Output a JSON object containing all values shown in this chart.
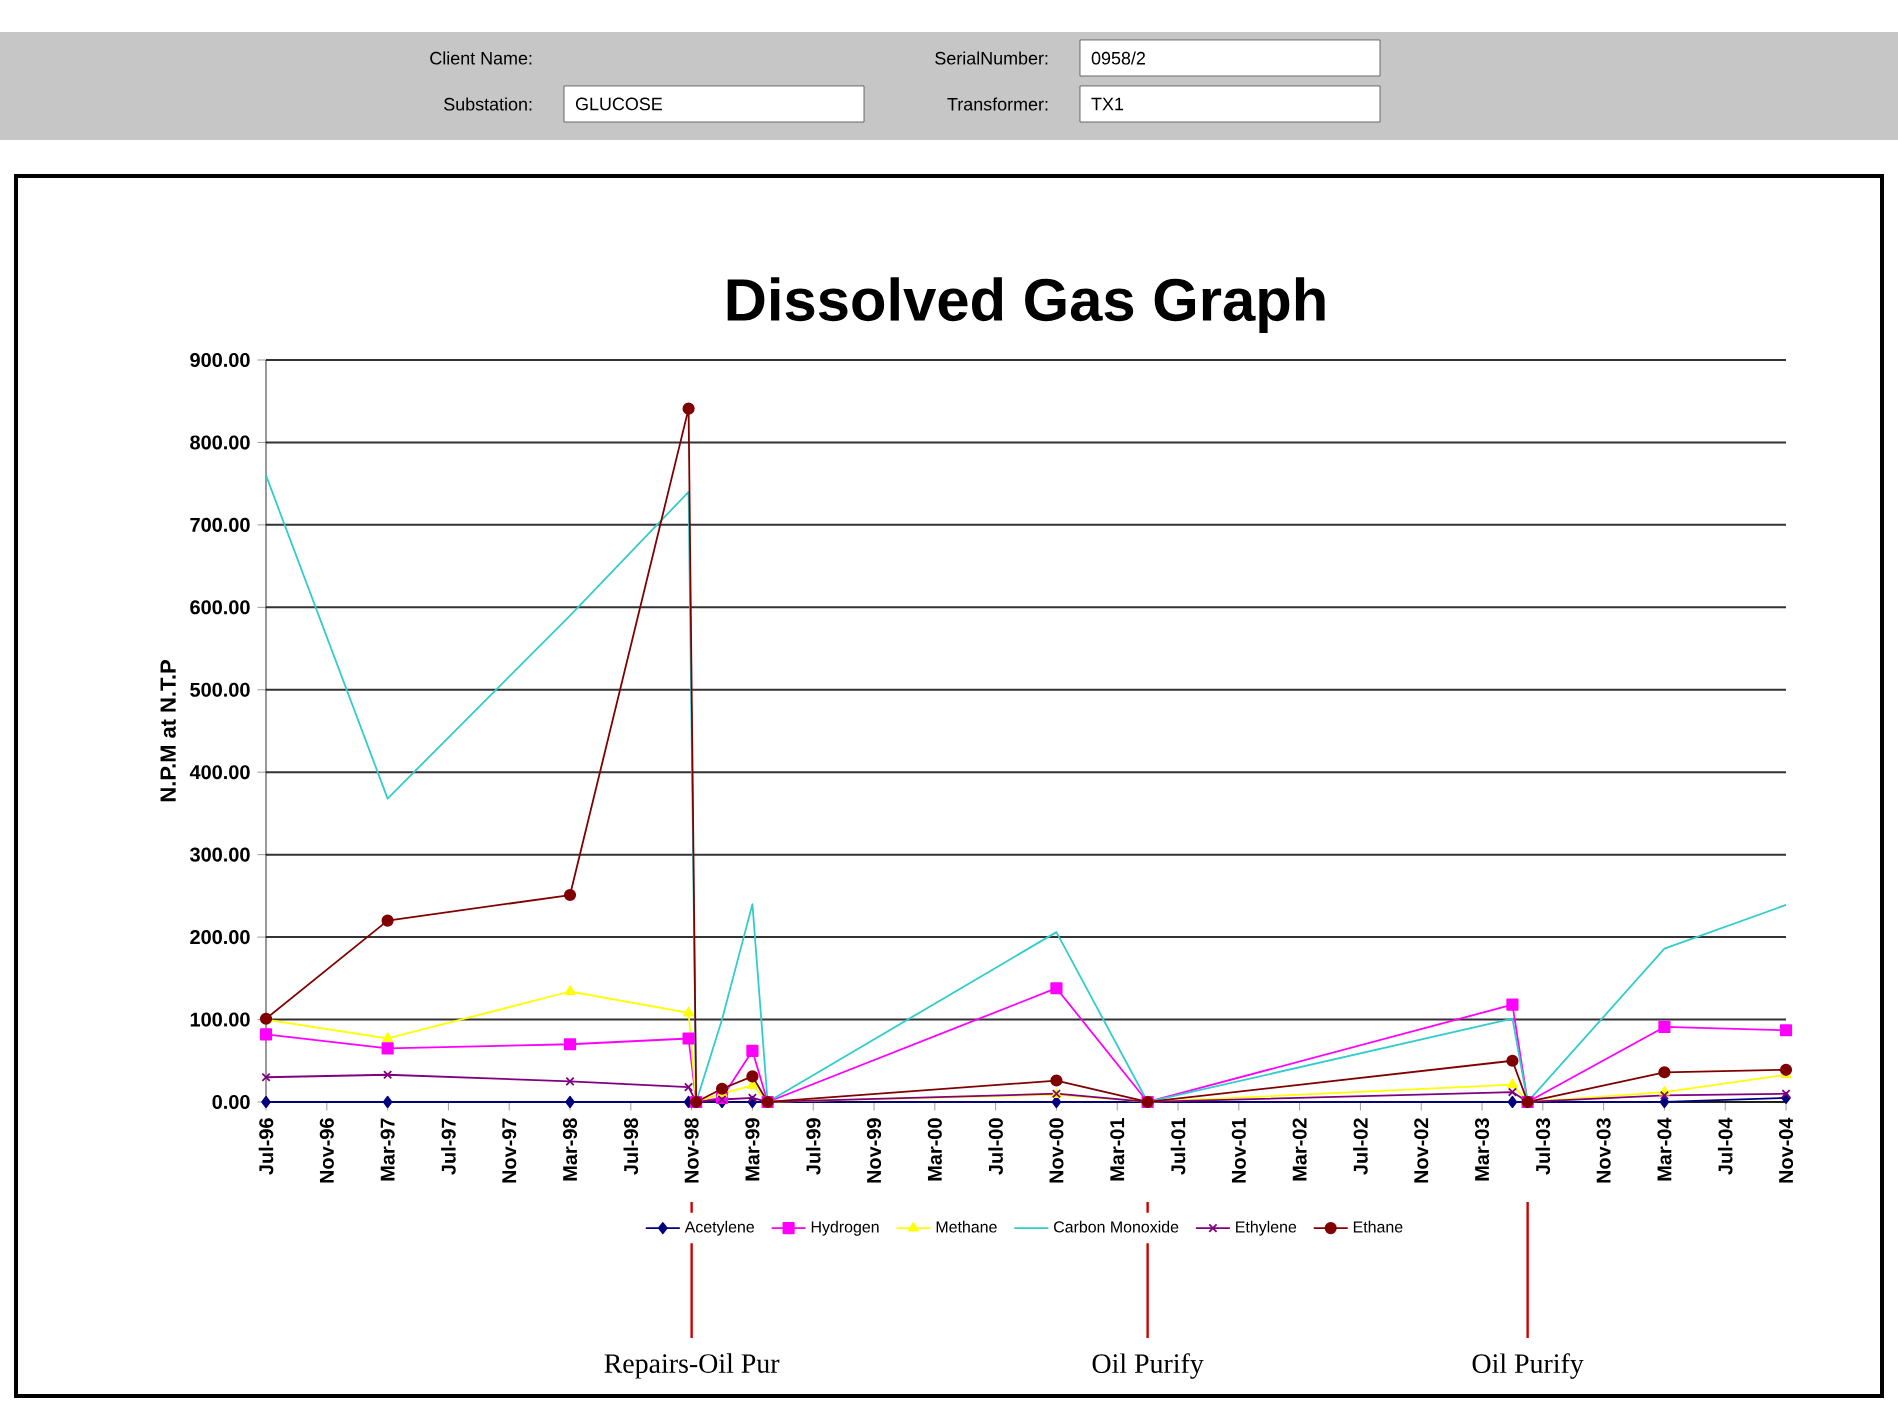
{
  "chart_data": {
    "type": "line",
    "title": "Dissolved Gas Graph",
    "ylabel": "N.P.M at N.T.P",
    "x": [
      "1996-07",
      "1997-03",
      "1998-03",
      "1998-10-25",
      "1998-11-10",
      "1999-01",
      "1999-03",
      "1999-04",
      "2000-11",
      "2001-05",
      "2003-05",
      "2003-06",
      "2004-03",
      "2004-11"
    ],
    "series": [
      {
        "name": "Acetylene",
        "color": "#000080",
        "marker": "diamond",
        "values": [
          0,
          0,
          0,
          0,
          0,
          0,
          0,
          0,
          0,
          0,
          0,
          0,
          0,
          5
        ]
      },
      {
        "name": "Hydrogen",
        "color": "#ff00ff",
        "marker": "square",
        "values": [
          82,
          65,
          70,
          77,
          0,
          5,
          62,
          0,
          138,
          0,
          118,
          0,
          91,
          87
        ]
      },
      {
        "name": "Methane",
        "color": "#ffff00",
        "marker": "triangle",
        "values": [
          100,
          77,
          134,
          108,
          0,
          10,
          20,
          0,
          9,
          0,
          21,
          0,
          12,
          33
        ]
      },
      {
        "name": "Carbon Monoxide",
        "color": "#33cccc",
        "marker": "none",
        "values": [
          760,
          368,
          590,
          740,
          0,
          100,
          240,
          0,
          206,
          0,
          101,
          0,
          186,
          239
        ]
      },
      {
        "name": "Ethylene",
        "color": "#800080",
        "marker": "cross",
        "values": [
          30,
          33,
          25,
          18,
          0,
          3,
          5,
          0,
          10,
          0,
          12,
          0,
          8,
          10
        ]
      },
      {
        "name": "Ethane",
        "color": "#800000",
        "marker": "circle",
        "values": [
          101,
          220,
          251,
          841,
          0,
          16,
          31,
          0,
          26,
          0,
          50,
          0,
          36,
          39
        ]
      }
    ],
    "xlim": [
      "1996-07",
      "2004-11"
    ],
    "xticks": [
      {
        "value": "1996-07",
        "label": "Jul-96"
      },
      {
        "value": "1996-11",
        "label": "Nov-96"
      },
      {
        "value": "1997-03",
        "label": "Mar-97"
      },
      {
        "value": "1997-07",
        "label": "Jul-97"
      },
      {
        "value": "1997-11",
        "label": "Nov-97"
      },
      {
        "value": "1998-03",
        "label": "Mar-98"
      },
      {
        "value": "1998-07",
        "label": "Jul-98"
      },
      {
        "value": "1998-11",
        "label": "Nov-98"
      },
      {
        "value": "1999-03",
        "label": "Mar-99"
      },
      {
        "value": "1999-07",
        "label": "Jul-99"
      },
      {
        "value": "1999-11",
        "label": "Nov-99"
      },
      {
        "value": "2000-03",
        "label": "Mar-00"
      },
      {
        "value": "2000-07",
        "label": "Jul-00"
      },
      {
        "value": "2000-11",
        "label": "Nov-00"
      },
      {
        "value": "2001-03",
        "label": "Mar-01"
      },
      {
        "value": "2001-07",
        "label": "Jul-01"
      },
      {
        "value": "2001-11",
        "label": "Nov-01"
      },
      {
        "value": "2002-03",
        "label": "Mar-02"
      },
      {
        "value": "2002-07",
        "label": "Jul-02"
      },
      {
        "value": "2002-11",
        "label": "Nov-02"
      },
      {
        "value": "2003-03",
        "label": "Mar-03"
      },
      {
        "value": "2003-07",
        "label": "Jul-03"
      },
      {
        "value": "2003-11",
        "label": "Nov-03"
      },
      {
        "value": "2004-03",
        "label": "Mar-04"
      },
      {
        "value": "2004-07",
        "label": "Jul-04"
      },
      {
        "value": "2004-11",
        "label": "Nov-04"
      }
    ],
    "ylim": [
      0,
      900
    ],
    "yticks": [
      {
        "value": 0,
        "label": "0.00"
      },
      {
        "value": 100,
        "label": "100.00"
      },
      {
        "value": 200,
        "label": "200.00"
      },
      {
        "value": 300,
        "label": "300.00"
      },
      {
        "value": 400,
        "label": "400.00"
      },
      {
        "value": 500,
        "label": "500.00"
      },
      {
        "value": 600,
        "label": "600.00"
      },
      {
        "value": 700,
        "label": "700.00"
      },
      {
        "value": 800,
        "label": "800.00"
      },
      {
        "value": 900,
        "label": "900.00"
      }
    ],
    "grid": "y",
    "legend": "bottom",
    "line_style": "solid",
    "ref_lines": [
      {
        "axis": "x",
        "value": "1998-11",
        "label": "Repairs-Oil Pur",
        "color": "#cc0000"
      },
      {
        "axis": "x",
        "value": "2001-05",
        "label": "Oil Purify",
        "color": "#cc0000"
      },
      {
        "axis": "x",
        "value": "2003-06",
        "label": "Oil Purify",
        "color": "#cc0000"
      }
    ],
    "annotations": [
      "Client Name:",
      "SerialNumber:",
      "0958/2",
      "Substation:",
      "GLUCOSE",
      "Transformer:",
      "TX1"
    ]
  }
}
